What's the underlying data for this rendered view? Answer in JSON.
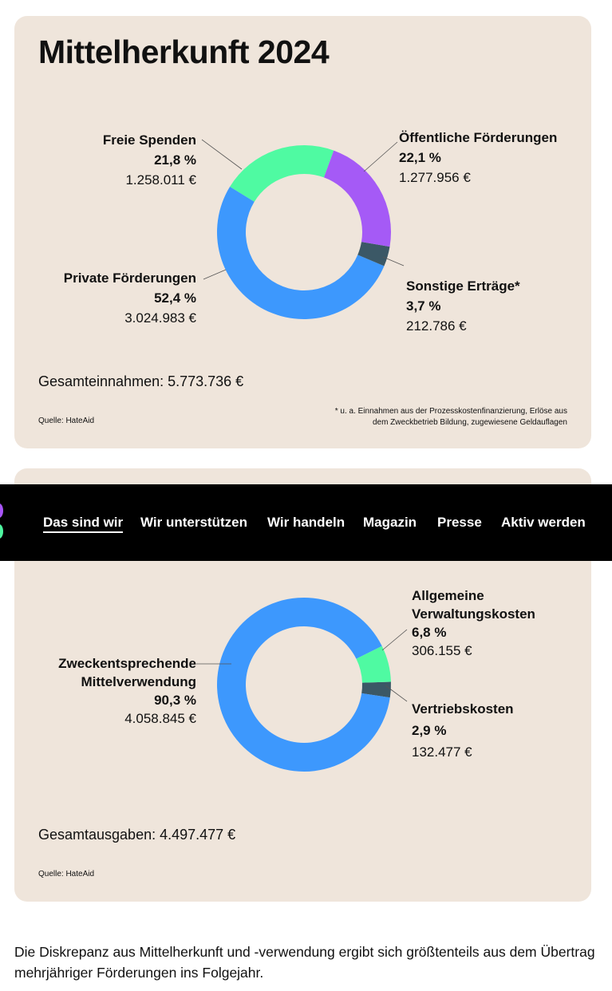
{
  "chart_data": [
    {
      "type": "pie",
      "title": "Mittelherkunft 2024",
      "start_angle_deg": 20,
      "slices": [
        {
          "name": "Öffentliche Förderungen",
          "percent_label": "22,1 %",
          "value_label": "1.277.956 €",
          "percent": 22.1,
          "color": "#a55af6"
        },
        {
          "name": "Sonstige Erträge*",
          "percent_label": "3,7 %",
          "value_label": "212.786 €",
          "percent": 3.7,
          "color": "#3b5866"
        },
        {
          "name": "Private Förderungen",
          "percent_label": "52,4 %",
          "value_label": "3.024.983 €",
          "percent": 52.4,
          "color": "#3d98fd"
        },
        {
          "name": "Freie Spenden",
          "percent_label": "21,8 %",
          "value_label": "1.258.011 €",
          "percent": 21.8,
          "color": "#4ffaa2"
        }
      ],
      "total": "Gesamteinnahmen: 5.773.736 €",
      "source": "Quelle: HateAid",
      "note": [
        "* u. a. Einnahmen aus der Prozesskostenfinanzierung, Erlöse aus",
        "dem Zweckbetrieb Bildung, zugewiesene Geldauflagen"
      ]
    },
    {
      "type": "pie",
      "start_angle_deg": 98.6,
      "slices": [
        {
          "name": "Zweckentsprechende Mittelverwendung",
          "percent_label": "90,3 %",
          "value_label": "4.058.845 €",
          "percent": 90.3,
          "color": "#3d98fd"
        },
        {
          "name": "Allgemeine Verwaltungskosten",
          "percent_label": "6,8 %",
          "value_label": "306.155 €",
          "percent": 6.8,
          "color": "#4ffaa2"
        },
        {
          "name": "Vertriebskosten",
          "percent_label": "2,9 %",
          "value_label": "132.477 €",
          "percent": 2.9,
          "color": "#3b5866"
        }
      ],
      "total": "Gesamtausgaben: 4.497.477 €",
      "source": "Quelle: HateAid"
    }
  ],
  "nav": [
    "Das sind wir",
    "Wir unterstützen",
    "Wir handeln",
    "Magazin",
    "Presse",
    "Aktiv werden"
  ],
  "footer_text": "Die Diskrepanz aus Mittelherkunft und -verwendung ergibt sich größtenteils aus dem Übertrag mehrjähriger Förderungen ins Folgejahr."
}
